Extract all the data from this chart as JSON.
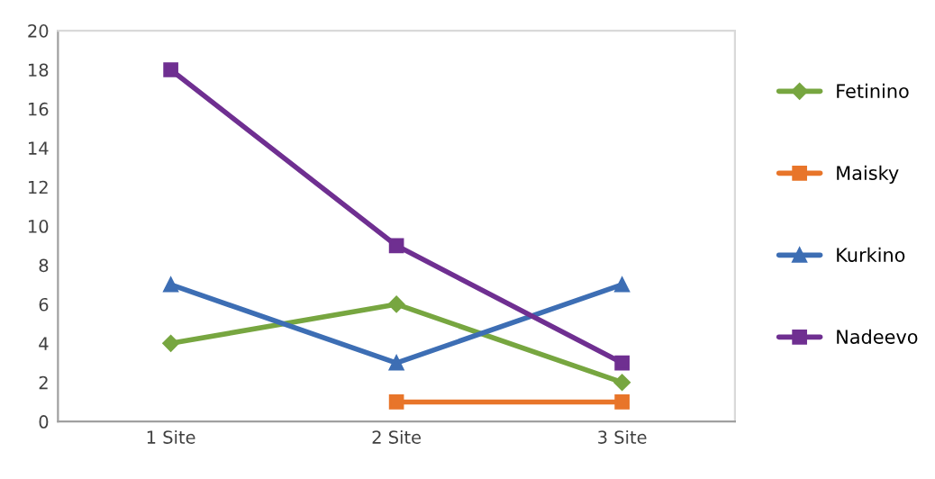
{
  "chart_data": {
    "type": "line",
    "categories": [
      "1 Site",
      "2 Site",
      "3 Site"
    ],
    "series": [
      {
        "name": "Fetinino",
        "color": "#77a640",
        "marker": "diamond",
        "values": [
          4,
          6,
          2
        ]
      },
      {
        "name": "Maisky",
        "color": "#e8752a",
        "marker": "square",
        "values": [
          null,
          1,
          1
        ]
      },
      {
        "name": "Kurkino",
        "color": "#3d6eb4",
        "marker": "triangle",
        "values": [
          7,
          3,
          7
        ]
      },
      {
        "name": "Nadeevo",
        "color": "#6f2f91",
        "marker": "square",
        "values": [
          18,
          9,
          3
        ]
      }
    ],
    "ylim": [
      0,
      20
    ],
    "yticks": [
      0,
      2,
      4,
      6,
      8,
      10,
      12,
      14,
      16,
      18,
      20
    ],
    "grid": false,
    "legend": "right",
    "line_style": "solid"
  }
}
